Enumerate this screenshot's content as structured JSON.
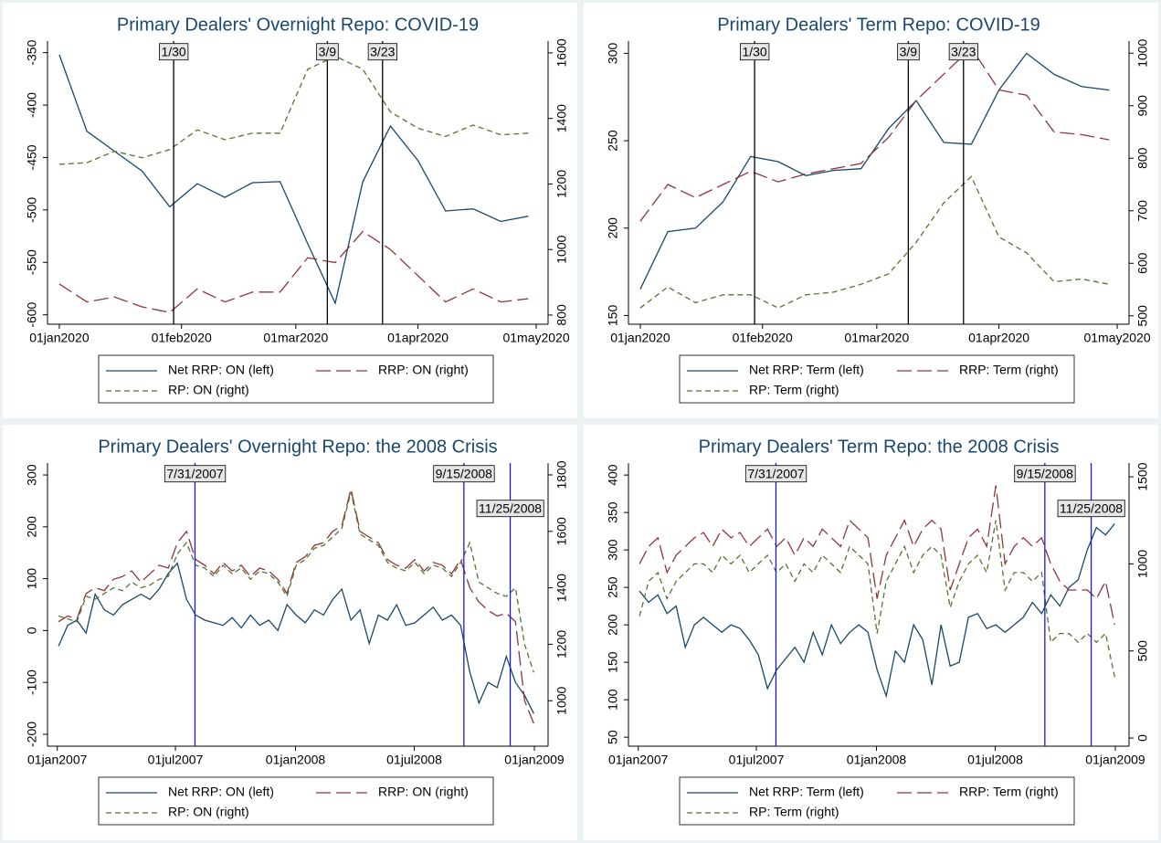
{
  "chart_data": [
    {
      "type": "line",
      "title": "Primary Dealers' Overnight Repo: COVID-19",
      "x": [
        "2020-01-01",
        "2020-01-08",
        "2020-01-15",
        "2020-01-22",
        "2020-01-29",
        "2020-02-05",
        "2020-02-12",
        "2020-02-19",
        "2020-02-26",
        "2020-03-04",
        "2020-03-11",
        "2020-03-18",
        "2020-03-25",
        "2020-04-01",
        "2020-04-08",
        "2020-04-15",
        "2020-04-22",
        "2020-04-29"
      ],
      "xlim": [
        "2019-12-29",
        "2020-05-04"
      ],
      "xticks": [
        {
          "value": "2020-01-01",
          "label": "01jan2020"
        },
        {
          "value": "2020-02-01",
          "label": "01feb2020"
        },
        {
          "value": "2020-03-01",
          "label": "01mar2020"
        },
        {
          "value": "2020-04-01",
          "label": "01apr2020"
        },
        {
          "value": "2020-05-01",
          "label": "01may2020"
        }
      ],
      "ylim": [
        -609,
        -339
      ],
      "yticks": [
        -350,
        -400,
        -450,
        -500,
        -550,
        -600
      ],
      "y2lim": [
        772,
        1636
      ],
      "y2ticks": [
        800,
        1000,
        1200,
        1400,
        1600
      ],
      "events": [
        {
          "x": "2020-01-30",
          "label": "1/30"
        },
        {
          "x": "2020-03-09",
          "label": "3/9"
        },
        {
          "x": "2020-03-23",
          "label": "3/23"
        }
      ],
      "event_color": "#000000",
      "series": [
        {
          "name": "Net RRP: ON (left)",
          "color": "#1a476f",
          "line_style": "solid",
          "values": [
            -352,
            -425,
            -444,
            -463,
            -497,
            -475,
            -488,
            -474,
            -473,
            -532,
            -589,
            -473,
            -420,
            -453,
            -501,
            -499,
            -511,
            -506
          ]
        },
        {
          "name": "RRP: ON (right)",
          "color": "#90353b",
          "line_style": "longdash",
          "axis": "y2",
          "values": [
            895,
            840,
            855,
            825,
            808,
            880,
            840,
            870,
            870,
            975,
            960,
            1055,
            1000,
            920,
            840,
            880,
            840,
            850
          ]
        },
        {
          "name": "RP: ON (right)",
          "color": "#55752f",
          "line_style": "dash",
          "axis": "y2",
          "values": [
            1260,
            1265,
            1300,
            1280,
            1305,
            1365,
            1335,
            1355,
            1355,
            1550,
            1590,
            1550,
            1420,
            1370,
            1345,
            1380,
            1350,
            1355
          ]
        }
      ]
    },
    {
      "type": "line",
      "title": "Primary Dealers' Term Repo: COVID-19",
      "x": [
        "2020-01-01",
        "2020-01-08",
        "2020-01-15",
        "2020-01-22",
        "2020-01-29",
        "2020-02-05",
        "2020-02-12",
        "2020-02-19",
        "2020-02-26",
        "2020-03-04",
        "2020-03-11",
        "2020-03-18",
        "2020-03-25",
        "2020-04-01",
        "2020-04-08",
        "2020-04-15",
        "2020-04-22",
        "2020-04-29"
      ],
      "xlim": [
        "2019-12-29",
        "2020-05-04"
      ],
      "xticks": [
        {
          "value": "2020-01-01",
          "label": "01jan2020"
        },
        {
          "value": "2020-02-01",
          "label": "01feb2020"
        },
        {
          "value": "2020-03-01",
          "label": "01mar2020"
        },
        {
          "value": "2020-04-01",
          "label": "01apr2020"
        },
        {
          "value": "2020-05-01",
          "label": "01may2020"
        }
      ],
      "ylim": [
        145,
        307
      ],
      "yticks": [
        150,
        200,
        250,
        300
      ],
      "y2lim": [
        484,
        1023
      ],
      "y2ticks": [
        500,
        600,
        700,
        800,
        900,
        1000
      ],
      "events": [
        {
          "x": "2020-01-30",
          "label": "1/30"
        },
        {
          "x": "2020-03-09",
          "label": "3/9"
        },
        {
          "x": "2020-03-23",
          "label": "3/23"
        }
      ],
      "event_color": "#000000",
      "series": [
        {
          "name": "Net RRP: Term (left)",
          "color": "#1a476f",
          "line_style": "solid",
          "values": [
            165,
            198,
            200,
            215,
            241,
            238,
            230,
            233,
            234,
            257,
            273,
            249,
            248,
            279,
            300,
            288,
            281,
            279
          ]
        },
        {
          "name": "RRP: Term (right)",
          "color": "#90353b",
          "line_style": "longdash",
          "axis": "y2",
          "values": [
            680,
            750,
            725,
            750,
            775,
            755,
            770,
            780,
            790,
            840,
            910,
            960,
            1010,
            930,
            920,
            850,
            845,
            835
          ]
        },
        {
          "name": "RP: Term (right)",
          "color": "#55752f",
          "line_style": "dash",
          "axis": "y2",
          "values": [
            515,
            555,
            525,
            540,
            540,
            515,
            540,
            545,
            560,
            580,
            640,
            715,
            765,
            650,
            620,
            565,
            570,
            560
          ]
        }
      ]
    },
    {
      "type": "line",
      "title": "Primary Dealers' Overnight Repo: the 2008 Crisis",
      "x": [
        "2007-01-03",
        "2007-01-17",
        "2007-01-31",
        "2007-02-14",
        "2007-02-28",
        "2007-03-14",
        "2007-03-28",
        "2007-04-11",
        "2007-04-25",
        "2007-05-09",
        "2007-05-23",
        "2007-06-06",
        "2007-06-20",
        "2007-07-04",
        "2007-07-18",
        "2007-08-01",
        "2007-08-15",
        "2007-08-29",
        "2007-09-12",
        "2007-09-26",
        "2007-10-10",
        "2007-10-24",
        "2007-11-07",
        "2007-11-21",
        "2007-12-05",
        "2007-12-19",
        "2008-01-02",
        "2008-01-16",
        "2008-01-30",
        "2008-02-13",
        "2008-02-27",
        "2008-03-12",
        "2008-03-26",
        "2008-04-09",
        "2008-04-23",
        "2008-05-07",
        "2008-05-21",
        "2008-06-04",
        "2008-06-18",
        "2008-07-02",
        "2008-07-16",
        "2008-07-30",
        "2008-08-13",
        "2008-08-27",
        "2008-09-10",
        "2008-09-24",
        "2008-10-08",
        "2008-10-22",
        "2008-11-05",
        "2008-11-19",
        "2008-12-03",
        "2008-12-17",
        "2008-12-31"
      ],
      "xlim": [
        "2006-12-17",
        "2009-01-22"
      ],
      "xticks": [
        {
          "value": "2007-01-01",
          "label": "01jan2007"
        },
        {
          "value": "2007-07-01",
          "label": "01jul2007"
        },
        {
          "value": "2008-01-01",
          "label": "01jan2008"
        },
        {
          "value": "2008-07-01",
          "label": "01jul2008"
        },
        {
          "value": "2009-01-01",
          "label": "01jan2009"
        }
      ],
      "ylim": [
        -223,
        323
      ],
      "yticks": [
        300,
        200,
        100,
        0,
        -100,
        -200
      ],
      "y2lim": [
        839,
        1842
      ],
      "y2ticks": [
        1000,
        1200,
        1400,
        1600,
        1800
      ],
      "events": [
        {
          "x": "2007-07-31",
          "label": "7/31/2007"
        },
        {
          "x": "2008-09-15",
          "label": "9/15/2008"
        },
        {
          "x": "2008-11-25",
          "label": "11/25/2008"
        }
      ],
      "event_color": "#1a1ad8",
      "series": [
        {
          "name": "Net RRP: ON (left)",
          "color": "#1a476f",
          "line_style": "solid",
          "values": [
            -30,
            10,
            20,
            -5,
            70,
            40,
            30,
            50,
            60,
            70,
            60,
            80,
            110,
            130,
            60,
            30,
            20,
            15,
            10,
            25,
            5,
            30,
            10,
            20,
            0,
            50,
            30,
            15,
            40,
            30,
            60,
            80,
            20,
            40,
            -25,
            30,
            20,
            50,
            10,
            15,
            30,
            45,
            20,
            30,
            10,
            -80,
            -140,
            -100,
            -110,
            -50,
            -100,
            -125,
            -160
          ]
        },
        {
          "name": "RRP: ON (right)",
          "color": "#90353b",
          "line_style": "longdash",
          "axis": "y2",
          "values": [
            1280,
            1300,
            1290,
            1380,
            1400,
            1390,
            1430,
            1440,
            1460,
            1420,
            1450,
            1480,
            1470,
            1560,
            1600,
            1500,
            1480,
            1450,
            1490,
            1460,
            1480,
            1440,
            1470,
            1460,
            1430,
            1380,
            1490,
            1510,
            1550,
            1560,
            1600,
            1620,
            1750,
            1600,
            1580,
            1560,
            1500,
            1480,
            1470,
            1500,
            1460,
            1490,
            1480,
            1450,
            1500,
            1400,
            1350,
            1320,
            1300,
            1310,
            1280,
            1000,
            920
          ]
        },
        {
          "name": "RP: ON (right)",
          "color": "#55752f",
          "line_style": "dash",
          "axis": "y2",
          "values": [
            1300,
            1290,
            1280,
            1370,
            1360,
            1380,
            1400,
            1390,
            1420,
            1400,
            1410,
            1430,
            1440,
            1520,
            1560,
            1480,
            1470,
            1440,
            1480,
            1450,
            1470,
            1430,
            1460,
            1450,
            1420,
            1370,
            1480,
            1500,
            1540,
            1550,
            1580,
            1610,
            1740,
            1590,
            1570,
            1550,
            1490,
            1470,
            1460,
            1490,
            1450,
            1480,
            1470,
            1440,
            1490,
            1560,
            1420,
            1400,
            1380,
            1370,
            1400,
            1200,
            1100
          ]
        }
      ]
    },
    {
      "type": "line",
      "title": "Primary Dealers' Term Repo: the 2008 Crisis",
      "x": [
        "2007-01-03",
        "2007-01-17",
        "2007-01-31",
        "2007-02-14",
        "2007-02-28",
        "2007-03-14",
        "2007-03-28",
        "2007-04-11",
        "2007-04-25",
        "2007-05-09",
        "2007-05-23",
        "2007-06-06",
        "2007-06-20",
        "2007-07-04",
        "2007-07-18",
        "2007-08-01",
        "2007-08-15",
        "2007-08-29",
        "2007-09-12",
        "2007-09-26",
        "2007-10-10",
        "2007-10-24",
        "2007-11-07",
        "2007-11-21",
        "2007-12-05",
        "2007-12-19",
        "2008-01-02",
        "2008-01-16",
        "2008-01-30",
        "2008-02-13",
        "2008-02-27",
        "2008-03-12",
        "2008-03-26",
        "2008-04-09",
        "2008-04-23",
        "2008-05-07",
        "2008-05-21",
        "2008-06-04",
        "2008-06-18",
        "2008-07-02",
        "2008-07-16",
        "2008-07-30",
        "2008-08-13",
        "2008-08-27",
        "2008-09-10",
        "2008-09-24",
        "2008-10-08",
        "2008-10-22",
        "2008-11-05",
        "2008-11-19",
        "2008-12-03",
        "2008-12-17",
        "2008-12-31"
      ],
      "xlim": [
        "2006-12-17",
        "2009-01-22"
      ],
      "xticks": [
        {
          "value": "2007-01-01",
          "label": "01jan2007"
        },
        {
          "value": "2007-07-01",
          "label": "01jul2007"
        },
        {
          "value": "2008-01-01",
          "label": "01jan2008"
        },
        {
          "value": "2008-07-01",
          "label": "01jul2008"
        },
        {
          "value": "2009-01-01",
          "label": "01jan2009"
        }
      ],
      "ylim": [
        38,
        416
      ],
      "yticks": [
        400,
        350,
        300,
        250,
        200,
        150,
        100,
        50
      ],
      "y2lim": [
        -47,
        1579
      ],
      "y2ticks": [
        0,
        500,
        1000,
        1500
      ],
      "events": [
        {
          "x": "2007-07-31",
          "label": "7/31/2007"
        },
        {
          "x": "2008-09-15",
          "label": "9/15/2008"
        },
        {
          "x": "2008-11-25",
          "label": "11/25/2008"
        }
      ],
      "event_color": "#1a1ad8",
      "series": [
        {
          "name": "Net RRP: Term (left)",
          "color": "#1a476f",
          "line_style": "solid",
          "values": [
            245,
            230,
            240,
            215,
            225,
            170,
            200,
            210,
            200,
            190,
            200,
            195,
            180,
            160,
            115,
            140,
            155,
            170,
            150,
            190,
            160,
            200,
            175,
            190,
            200,
            190,
            140,
            105,
            165,
            150,
            200,
            180,
            120,
            200,
            145,
            150,
            210,
            215,
            195,
            200,
            190,
            200,
            210,
            230,
            215,
            240,
            225,
            250,
            260,
            300,
            330,
            320,
            335
          ]
        },
        {
          "name": "RRP: Term (right)",
          "color": "#90353b",
          "line_style": "longdash",
          "axis": "y2",
          "values": [
            1000,
            1100,
            1150,
            950,
            1050,
            1100,
            1150,
            1180,
            1100,
            1200,
            1150,
            1180,
            1100,
            1150,
            1200,
            1100,
            1150,
            1050,
            1150,
            1100,
            1200,
            1150,
            1100,
            1250,
            1200,
            1150,
            800,
            1050,
            1150,
            1250,
            1100,
            1200,
            1250,
            1200,
            850,
            1000,
            1150,
            1200,
            1100,
            1450,
            1000,
            1100,
            1150,
            1100,
            1150,
            1000,
            900,
            850,
            850,
            850,
            800,
            900,
            650
          ]
        },
        {
          "name": "RP: Term (right)",
          "color": "#55752f",
          "line_style": "dash",
          "axis": "y2",
          "values": [
            700,
            900,
            950,
            800,
            900,
            950,
            1000,
            1000,
            950,
            1050,
            1000,
            1050,
            950,
            1000,
            1050,
            950,
            1000,
            900,
            1000,
            950,
            1050,
            1000,
            950,
            1100,
            1050,
            1000,
            600,
            900,
            1000,
            1100,
            950,
            1050,
            1100,
            1050,
            750,
            900,
            1000,
            1050,
            950,
            1250,
            850,
            950,
            950,
            900,
            950,
            550,
            600,
            600,
            550,
            600,
            550,
            600,
            350
          ]
        }
      ]
    }
  ]
}
